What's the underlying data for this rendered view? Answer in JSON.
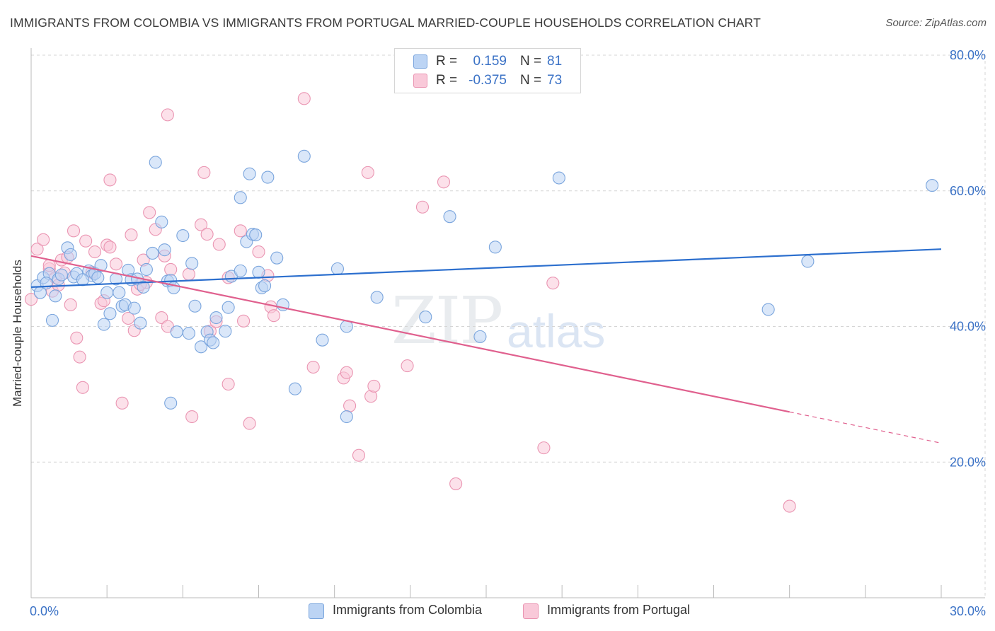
{
  "title": "IMMIGRANTS FROM COLOMBIA VS IMMIGRANTS FROM PORTUGAL MARRIED-COUPLE HOUSEHOLDS CORRELATION CHART",
  "source": "Source: ZipAtlas.com",
  "watermark": {
    "zip": "ZIP",
    "atlas": "atlas"
  },
  "stats": {
    "colombia": {
      "r_label": "R =",
      "r_value": "0.159",
      "n_label": "N =",
      "n_value": "81"
    },
    "portugal": {
      "r_label": "R =",
      "r_value": "-0.375",
      "n_label": "N =",
      "n_value": "73"
    }
  },
  "legend": {
    "colombia": "Immigrants from Colombia",
    "portugal": "Immigrants from Portugal"
  },
  "colors": {
    "colombia_fill": "#bcd4f4",
    "colombia_stroke": "#7aa5dd",
    "colombia_line": "#2c6fce",
    "portugal_fill": "#f9c9d9",
    "portugal_stroke": "#ea95b2",
    "portugal_line": "#e0608e",
    "axis_text": "#3b72c6",
    "grid": "#d5d5d5"
  },
  "chart_data": {
    "type": "scatter",
    "title": "IMMIGRANTS FROM COLOMBIA VS IMMIGRANTS FROM PORTUGAL MARRIED-COUPLE HOUSEHOLDS CORRELATION CHART",
    "xlabel": "",
    "ylabel": "Married-couple Households",
    "xlim": [
      0,
      30
    ],
    "ylim": [
      0,
      80
    ],
    "x_tick_labels": [
      "0.0%",
      "30.0%"
    ],
    "y_ticks": [
      20,
      40,
      60,
      80
    ],
    "y_tick_labels": [
      "20.0%",
      "40.0%",
      "60.0%",
      "80.0%"
    ],
    "series": [
      {
        "name": "Immigrants from Colombia",
        "R": 0.159,
        "N": 81,
        "trend": {
          "x": [
            0,
            30
          ],
          "y": [
            45.8,
            51.4
          ],
          "dashed_from": null
        },
        "points": [
          [
            0.2,
            46.0
          ],
          [
            0.4,
            47.2
          ],
          [
            0.6,
            47.8
          ],
          [
            0.3,
            45.0
          ],
          [
            0.8,
            44.5
          ],
          [
            0.9,
            47.0
          ],
          [
            1.0,
            47.6
          ],
          [
            0.7,
            40.9
          ],
          [
            1.4,
            47.3
          ],
          [
            1.5,
            47.8
          ],
          [
            1.2,
            51.6
          ],
          [
            1.3,
            50.6
          ],
          [
            1.9,
            48.2
          ],
          [
            2.0,
            47.5
          ],
          [
            2.1,
            47.8
          ],
          [
            2.3,
            49.0
          ],
          [
            2.5,
            45.0
          ],
          [
            2.4,
            40.3
          ],
          [
            2.6,
            41.9
          ],
          [
            2.8,
            47.0
          ],
          [
            2.9,
            45.0
          ],
          [
            3.0,
            43.0
          ],
          [
            3.1,
            43.2
          ],
          [
            3.2,
            48.3
          ],
          [
            3.3,
            46.9
          ],
          [
            3.5,
            47.0
          ],
          [
            3.4,
            42.7
          ],
          [
            3.6,
            40.5
          ],
          [
            3.7,
            45.8
          ],
          [
            3.8,
            48.4
          ],
          [
            4.0,
            50.8
          ],
          [
            4.3,
            55.4
          ],
          [
            4.4,
            51.3
          ],
          [
            4.5,
            46.7
          ],
          [
            4.6,
            46.8
          ],
          [
            4.7,
            45.7
          ],
          [
            4.8,
            39.2
          ],
          [
            4.6,
            28.7
          ],
          [
            5.0,
            53.4
          ],
          [
            5.3,
            49.3
          ],
          [
            5.2,
            39.0
          ],
          [
            5.6,
            37.0
          ],
          [
            5.4,
            43.0
          ],
          [
            5.8,
            39.2
          ],
          [
            5.9,
            38.0
          ],
          [
            6.0,
            37.6
          ],
          [
            6.1,
            41.3
          ],
          [
            6.4,
            39.3
          ],
          [
            6.5,
            42.8
          ],
          [
            6.6,
            47.4
          ],
          [
            6.9,
            48.2
          ],
          [
            7.1,
            52.5
          ],
          [
            7.3,
            53.6
          ],
          [
            7.4,
            53.5
          ],
          [
            7.6,
            45.7
          ],
          [
            7.7,
            46.0
          ],
          [
            7.5,
            48.0
          ],
          [
            8.1,
            50.1
          ],
          [
            8.7,
            30.8
          ],
          [
            9.0,
            65.1
          ],
          [
            9.6,
            38.0
          ],
          [
            10.1,
            48.5
          ],
          [
            10.4,
            40.0
          ],
          [
            10.4,
            26.7
          ],
          [
            11.4,
            44.3
          ],
          [
            13.0,
            41.4
          ],
          [
            13.8,
            56.2
          ],
          [
            15.3,
            51.7
          ],
          [
            14.8,
            38.5
          ],
          [
            17.4,
            61.9
          ],
          [
            24.3,
            42.5
          ],
          [
            25.6,
            49.6
          ],
          [
            29.7,
            60.8
          ],
          [
            7.2,
            62.5
          ],
          [
            7.8,
            62.0
          ],
          [
            6.9,
            59.0
          ],
          [
            4.1,
            64.2
          ],
          [
            8.3,
            43.2
          ],
          [
            0.5,
            46.4
          ],
          [
            1.7,
            46.9
          ],
          [
            2.2,
            47.2
          ]
        ]
      },
      {
        "name": "Immigrants from Portugal",
        "R": -0.375,
        "N": 73,
        "trend": {
          "x": [
            0,
            30
          ],
          "y": [
            50.4,
            22.8
          ],
          "dashed_from": 25.0
        },
        "points": [
          [
            0.0,
            44.0
          ],
          [
            0.2,
            51.4
          ],
          [
            0.4,
            52.8
          ],
          [
            0.6,
            48.5
          ],
          [
            0.7,
            45.2
          ],
          [
            0.8,
            47.2
          ],
          [
            1.0,
            49.8
          ],
          [
            1.1,
            47.9
          ],
          [
            1.2,
            50.2
          ],
          [
            1.3,
            43.2
          ],
          [
            1.4,
            54.1
          ],
          [
            1.6,
            35.5
          ],
          [
            1.7,
            31.0
          ],
          [
            1.5,
            38.3
          ],
          [
            2.0,
            48.0
          ],
          [
            2.1,
            51.0
          ],
          [
            2.5,
            52.0
          ],
          [
            2.6,
            51.7
          ],
          [
            2.3,
            43.4
          ],
          [
            2.8,
            49.2
          ],
          [
            3.3,
            53.5
          ],
          [
            3.2,
            41.2
          ],
          [
            3.4,
            39.4
          ],
          [
            3.5,
            45.5
          ],
          [
            3.7,
            49.8
          ],
          [
            3.8,
            46.5
          ],
          [
            3.9,
            56.8
          ],
          [
            4.1,
            54.3
          ],
          [
            4.3,
            41.3
          ],
          [
            4.4,
            50.4
          ],
          [
            4.5,
            40.0
          ],
          [
            4.6,
            48.4
          ],
          [
            2.6,
            61.6
          ],
          [
            3.0,
            28.7
          ],
          [
            4.5,
            71.2
          ],
          [
            5.7,
            62.7
          ],
          [
            5.2,
            47.7
          ],
          [
            5.6,
            55.0
          ],
          [
            5.8,
            53.6
          ],
          [
            6.2,
            52.1
          ],
          [
            6.5,
            47.2
          ],
          [
            5.9,
            39.3
          ],
          [
            6.1,
            40.7
          ],
          [
            5.3,
            26.7
          ],
          [
            6.5,
            31.5
          ],
          [
            6.9,
            54.1
          ],
          [
            7.0,
            40.8
          ],
          [
            7.2,
            25.7
          ],
          [
            7.5,
            51.0
          ],
          [
            7.8,
            47.5
          ],
          [
            7.9,
            42.9
          ],
          [
            8.0,
            41.6
          ],
          [
            9.0,
            73.6
          ],
          [
            9.3,
            34.0
          ],
          [
            10.3,
            32.4
          ],
          [
            10.4,
            33.2
          ],
          [
            10.5,
            28.3
          ],
          [
            10.8,
            21.0
          ],
          [
            11.1,
            62.7
          ],
          [
            11.2,
            29.7
          ],
          [
            11.3,
            31.2
          ],
          [
            12.4,
            34.2
          ],
          [
            12.9,
            57.6
          ],
          [
            13.6,
            61.3
          ],
          [
            14.0,
            16.8
          ],
          [
            16.9,
            22.1
          ],
          [
            17.2,
            46.4
          ],
          [
            25.0,
            13.5
          ],
          [
            0.6,
            49.0
          ],
          [
            0.9,
            46.1
          ],
          [
            1.8,
            52.6
          ],
          [
            2.4,
            43.8
          ],
          [
            3.6,
            46.2
          ]
        ]
      }
    ]
  }
}
